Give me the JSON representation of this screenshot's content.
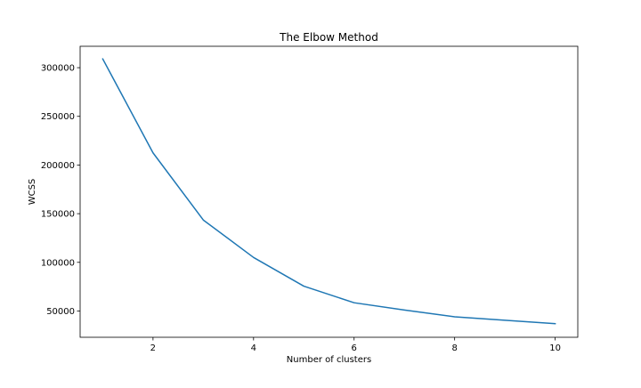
{
  "chart_data": {
    "type": "line",
    "title": "The Elbow Method",
    "xlabel": "Number of clusters",
    "ylabel": "WCSS",
    "xlim": [
      0.55,
      10.45
    ],
    "ylim": [
      23000,
      322000
    ],
    "grid": false,
    "x_ticks": [
      2,
      4,
      6,
      8,
      10
    ],
    "y_ticks": [
      50000,
      100000,
      150000,
      200000,
      250000,
      300000
    ],
    "series": [
      {
        "color": "#1f77b4",
        "x": [
          1,
          2,
          3,
          4,
          5,
          6,
          7,
          8,
          9,
          10
        ],
        "y": [
          309000,
          212500,
          143500,
          105000,
          75500,
          58500,
          51000,
          44000,
          40500,
          37000
        ]
      }
    ]
  }
}
